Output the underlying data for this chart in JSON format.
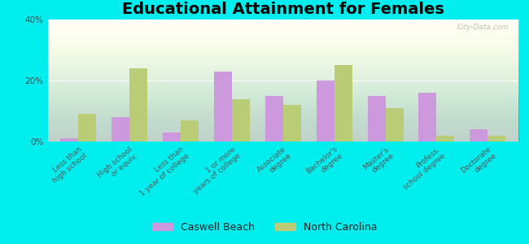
{
  "title": "Educational Attainment for Females",
  "categories": [
    "Less than\nhigh school",
    "High school\nor equiv.",
    "Less than\n1 year of college",
    "1 or more\nyears of college",
    "Associate\ndegree",
    "Bachelor's\ndegree",
    "Master's\ndegree",
    "Profess.\nschool degree",
    "Doctorate\ndegree"
  ],
  "caswell_beach": [
    1,
    8,
    3,
    23,
    15,
    20,
    15,
    16,
    4
  ],
  "north_carolina": [
    9,
    24,
    7,
    14,
    12,
    25,
    11,
    2,
    2
  ],
  "caswell_color": "#cc99dd",
  "nc_color": "#bbcc77",
  "background_color": "#00eeee",
  "ylim": [
    0,
    40
  ],
  "yticks": [
    0,
    20,
    40
  ],
  "ytick_labels": [
    "0%",
    "20%",
    "40%"
  ],
  "bar_width": 0.35,
  "title_fontsize": 14,
  "tick_fontsize": 6.5,
  "legend_fontsize": 9,
  "watermark": "City-Data.com"
}
